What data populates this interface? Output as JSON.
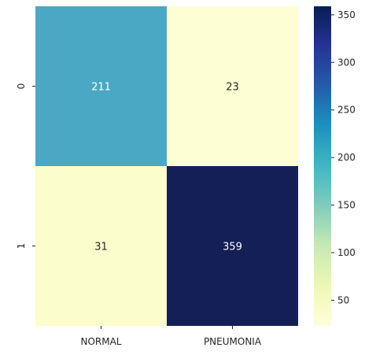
{
  "chart_data": {
    "type": "heatmap",
    "title": "",
    "xlabel": "",
    "ylabel": "",
    "x_categories": [
      "NORMAL",
      "PNEUMONIA"
    ],
    "y_categories": [
      "0",
      "1"
    ],
    "values": [
      [
        211,
        23
      ],
      [
        31,
        359
      ]
    ],
    "colormap": "YlGnBu",
    "colorbar": {
      "range": [
        23,
        359
      ],
      "ticks": [
        50,
        100,
        150,
        200,
        250,
        300,
        350
      ]
    },
    "colors": {
      "211": "#4aa8c5",
      "23": "#fdfed3",
      "31": "#fbfdcc",
      "359": "#131f56"
    }
  }
}
